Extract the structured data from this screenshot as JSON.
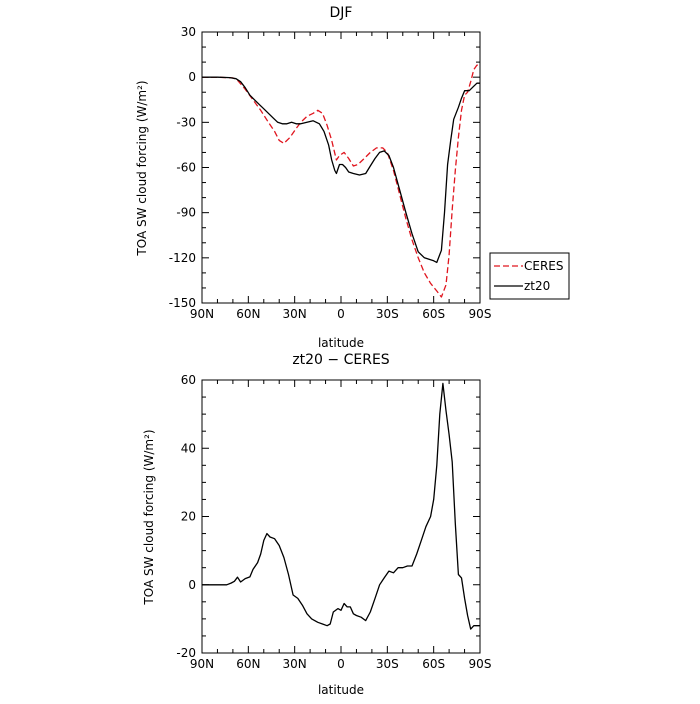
{
  "chart_data": [
    {
      "type": "line",
      "title": "DJF",
      "xlabel": "latitude",
      "ylabel": "TOA SW cloud forcing (W/m²)",
      "xlim": [
        90,
        -90
      ],
      "ylim": [
        -150,
        30
      ],
      "x_ticks": [
        90,
        60,
        30,
        0,
        -30,
        -60,
        -90
      ],
      "x_tick_labels": [
        "90N",
        "60N",
        "30N",
        "0",
        "30S",
        "60S",
        "90S"
      ],
      "y_ticks": [
        30,
        0,
        -30,
        -60,
        -90,
        -120,
        -150
      ],
      "y_tick_labels": [
        "30",
        "0",
        "-30",
        "-60",
        "-90",
        "-120",
        "-150"
      ],
      "legend": {
        "position": "right-outside"
      },
      "series": [
        {
          "name": "CERES",
          "color": "#e0161f",
          "dash": "dashed",
          "points": [
            [
              90,
              0
            ],
            [
              80,
              0
            ],
            [
              70,
              -0.5
            ],
            [
              67,
              -2
            ],
            [
              62,
              -8
            ],
            [
              57,
              -15
            ],
            [
              52,
              -22
            ],
            [
              47,
              -30
            ],
            [
              43,
              -36
            ],
            [
              40,
              -42
            ],
            [
              37,
              -44
            ],
            [
              33,
              -40
            ],
            [
              29,
              -34
            ],
            [
              26,
              -30
            ],
            [
              22,
              -26
            ],
            [
              18,
              -24
            ],
            [
              15,
              -22
            ],
            [
              12,
              -24
            ],
            [
              9,
              -32
            ],
            [
              6,
              -42
            ],
            [
              3,
              -55
            ],
            [
              1,
              -52
            ],
            [
              -2,
              -50
            ],
            [
              -5,
              -54
            ],
            [
              -8,
              -59
            ],
            [
              -11,
              -58
            ],
            [
              -15,
              -54
            ],
            [
              -19,
              -50
            ],
            [
              -23,
              -47
            ],
            [
              -27,
              -47
            ],
            [
              -30,
              -50
            ],
            [
              -34,
              -62
            ],
            [
              -38,
              -78
            ],
            [
              -42,
              -94
            ],
            [
              -46,
              -108
            ],
            [
              -50,
              -120
            ],
            [
              -54,
              -130
            ],
            [
              -58,
              -137
            ],
            [
              -62,
              -142
            ],
            [
              -65,
              -146
            ],
            [
              -68,
              -138
            ],
            [
              -70,
              -118
            ],
            [
              -72,
              -88
            ],
            [
              -74,
              -62
            ],
            [
              -76,
              -40
            ],
            [
              -78,
              -22
            ],
            [
              -80,
              -12
            ],
            [
              -82,
              -10
            ],
            [
              -84,
              -3
            ],
            [
              -86,
              5
            ],
            [
              -88,
              8
            ],
            [
              -90,
              8
            ]
          ]
        },
        {
          "name": "zt20",
          "color": "#000000",
          "dash": "solid",
          "points": [
            [
              90,
              0
            ],
            [
              80,
              0
            ],
            [
              72,
              -0.3
            ],
            [
              68,
              -1
            ],
            [
              65,
              -3
            ],
            [
              62,
              -7
            ],
            [
              59,
              -12
            ],
            [
              56,
              -15
            ],
            [
              53,
              -18
            ],
            [
              50,
              -21
            ],
            [
              47,
              -24
            ],
            [
              44,
              -27
            ],
            [
              41,
              -30
            ],
            [
              38,
              -31
            ],
            [
              35,
              -31
            ],
            [
              32,
              -30
            ],
            [
              29,
              -31
            ],
            [
              26,
              -31
            ],
            [
              22,
              -30
            ],
            [
              18,
              -29
            ],
            [
              14,
              -31
            ],
            [
              11,
              -36
            ],
            [
              8,
              -45
            ],
            [
              6,
              -55
            ],
            [
              4,
              -62
            ],
            [
              3,
              -64
            ],
            [
              1,
              -58
            ],
            [
              -1,
              -58
            ],
            [
              -3,
              -60
            ],
            [
              -5,
              -63
            ],
            [
              -8,
              -64
            ],
            [
              -12,
              -65
            ],
            [
              -16,
              -64
            ],
            [
              -19,
              -59
            ],
            [
              -22,
              -54
            ],
            [
              -25,
              -50
            ],
            [
              -28,
              -49
            ],
            [
              -31,
              -52
            ],
            [
              -34,
              -60
            ],
            [
              -38,
              -75
            ],
            [
              -42,
              -90
            ],
            [
              -46,
              -104
            ],
            [
              -50,
              -116
            ],
            [
              -54,
              -120
            ],
            [
              -57,
              -121
            ],
            [
              -60,
              -122
            ],
            [
              -62,
              -123
            ],
            [
              -65,
              -115
            ],
            [
              -67,
              -90
            ],
            [
              -69,
              -58
            ],
            [
              -71,
              -42
            ],
            [
              -73,
              -28
            ],
            [
              -76,
              -20
            ],
            [
              -78,
              -14
            ],
            [
              -80,
              -9
            ],
            [
              -83,
              -9
            ],
            [
              -86,
              -6
            ],
            [
              -88,
              -4
            ],
            [
              -90,
              -4
            ]
          ]
        }
      ]
    },
    {
      "type": "line",
      "title": "zt20 − CERES",
      "xlabel": "latitude",
      "ylabel": "TOA SW cloud forcing (W/m²)",
      "xlim": [
        90,
        -90
      ],
      "ylim": [
        -20,
        60
      ],
      "x_ticks": [
        90,
        60,
        30,
        0,
        -30,
        -60,
        -90
      ],
      "x_tick_labels": [
        "90N",
        "60N",
        "30N",
        "0",
        "30S",
        "60S",
        "90S"
      ],
      "y_ticks": [
        60,
        40,
        20,
        0,
        -20
      ],
      "y_tick_labels": [
        "60",
        "40",
        "20",
        "0",
        "-20"
      ],
      "series": [
        {
          "color": "#000000",
          "dash": "solid",
          "points": [
            [
              90,
              0
            ],
            [
              80,
              0
            ],
            [
              74,
              0
            ],
            [
              71,
              0.5
            ],
            [
              69,
              1
            ],
            [
              67,
              2.2
            ],
            [
              65,
              0.8
            ],
            [
              62,
              1.8
            ],
            [
              59,
              2.3
            ],
            [
              57,
              4.5
            ],
            [
              54,
              6.5
            ],
            [
              52,
              9
            ],
            [
              50,
              13
            ],
            [
              48,
              15
            ],
            [
              46,
              14
            ],
            [
              43,
              13.5
            ],
            [
              40,
              11.5
            ],
            [
              37,
              8
            ],
            [
              34,
              3
            ],
            [
              31,
              -3
            ],
            [
              28,
              -4
            ],
            [
              25,
              -6
            ],
            [
              22,
              -8.5
            ],
            [
              19,
              -10
            ],
            [
              15,
              -11
            ],
            [
              12,
              -11.5
            ],
            [
              9,
              -12
            ],
            [
              7,
              -11.5
            ],
            [
              5,
              -8
            ],
            [
              2,
              -7
            ],
            [
              0,
              -7.5
            ],
            [
              -2,
              -5.5
            ],
            [
              -4,
              -6.5
            ],
            [
              -6,
              -6.5
            ],
            [
              -8,
              -8.5
            ],
            [
              -10,
              -9
            ],
            [
              -13,
              -9.5
            ],
            [
              -16,
              -10.5
            ],
            [
              -19,
              -8
            ],
            [
              -22,
              -4
            ],
            [
              -25,
              0
            ],
            [
              -28,
              2
            ],
            [
              -31,
              4
            ],
            [
              -34,
              3.5
            ],
            [
              -37,
              5
            ],
            [
              -40,
              5
            ],
            [
              -43,
              5.5
            ],
            [
              -46,
              5.5
            ],
            [
              -49,
              9
            ],
            [
              -52,
              13
            ],
            [
              -55,
              17
            ],
            [
              -58,
              20
            ],
            [
              -60,
              25
            ],
            [
              -62,
              35
            ],
            [
              -64,
              50
            ],
            [
              -66,
              59
            ],
            [
              -68,
              51
            ],
            [
              -70,
              44
            ],
            [
              -72,
              36
            ],
            [
              -74,
              18
            ],
            [
              -76,
              3
            ],
            [
              -78,
              2
            ],
            [
              -80,
              -4
            ],
            [
              -82,
              -9
            ],
            [
              -84,
              -13
            ],
            [
              -86,
              -12
            ],
            [
              -88,
              -12
            ],
            [
              -90,
              -12
            ]
          ]
        }
      ]
    }
  ]
}
